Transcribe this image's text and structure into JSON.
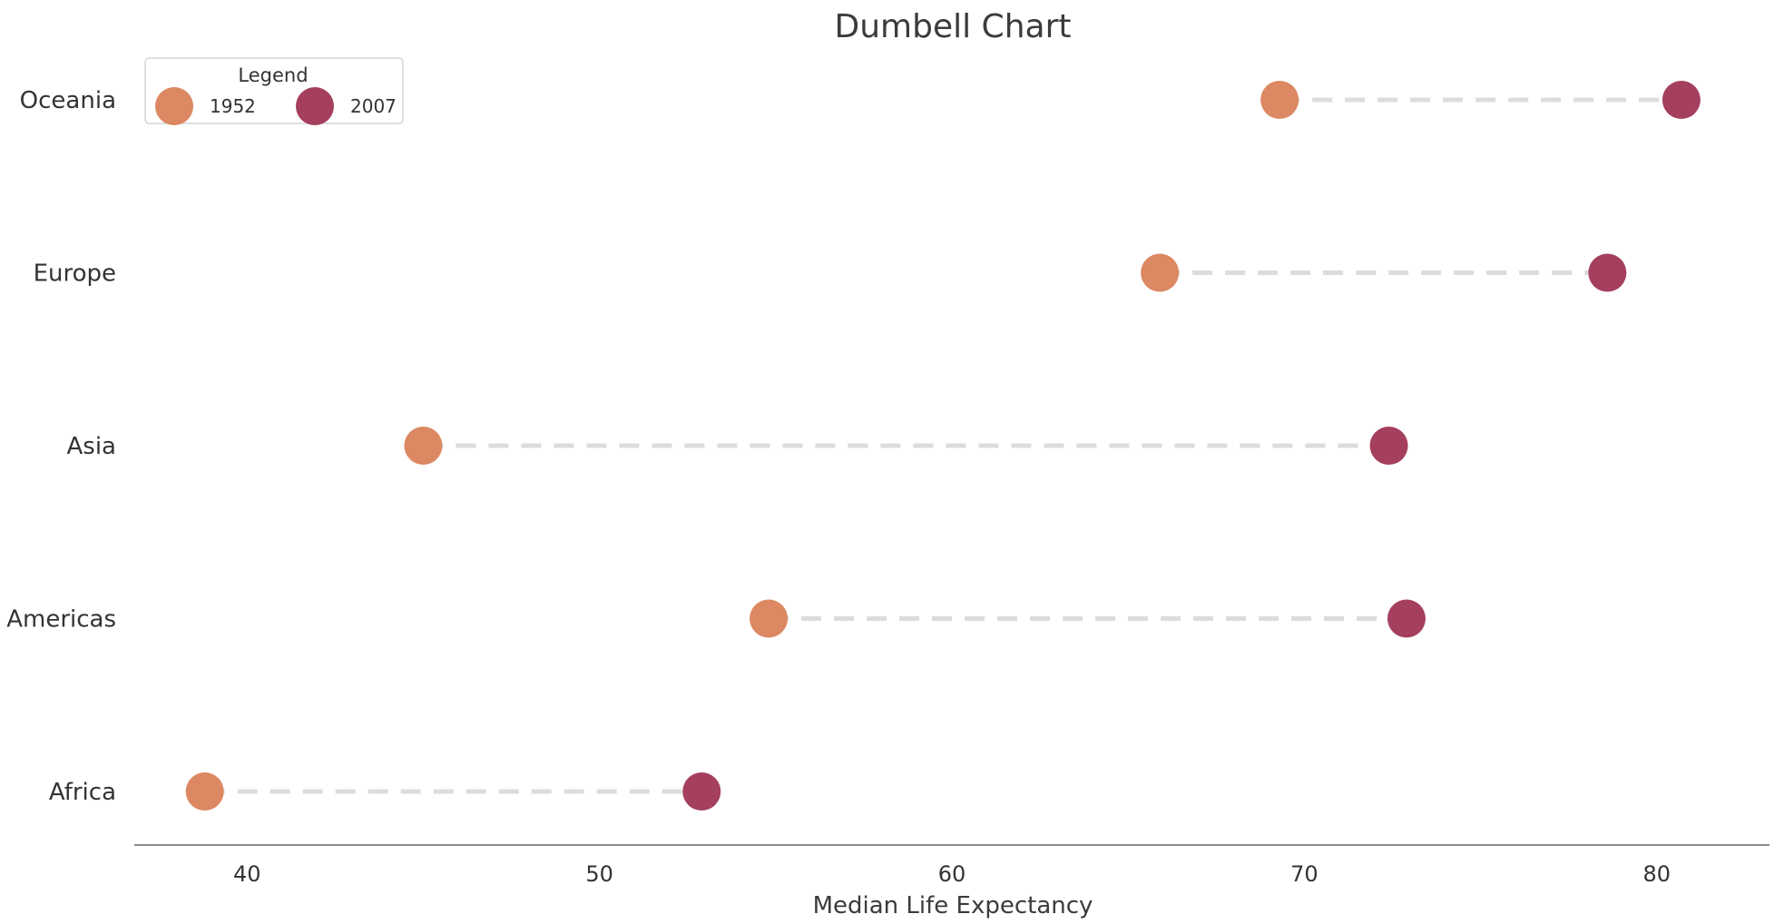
{
  "chart_data": {
    "type": "dumbbell",
    "title": "Dumbell Chart",
    "xlabel": "Median Life Expectancy",
    "ylabel": "",
    "xlim": [
      36.8,
      83.2
    ],
    "xticks": [
      40,
      50,
      60,
      70,
      80
    ],
    "grid": false,
    "legend": {
      "title": "Legend",
      "placement": "top-left",
      "entries": [
        "1952",
        "2007"
      ]
    },
    "categories": [
      "Oceania",
      "Europe",
      "Asia",
      "Americas",
      "Africa"
    ],
    "series": [
      {
        "name": "1952",
        "color": "#dc8862",
        "values": [
          69.3,
          65.9,
          45.0,
          54.8,
          38.8
        ]
      },
      {
        "name": "2007",
        "color": "#a53f5e",
        "values": [
          80.7,
          78.6,
          72.4,
          72.9,
          52.9
        ]
      }
    ],
    "connector_color": "#dcdcdc"
  }
}
